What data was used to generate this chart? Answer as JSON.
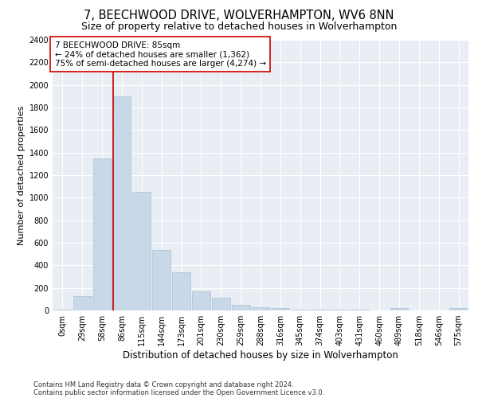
{
  "title1": "7, BEECHWOOD DRIVE, WOLVERHAMPTON, WV6 8NN",
  "title2": "Size of property relative to detached houses in Wolverhampton",
  "xlabel": "Distribution of detached houses by size in Wolverhampton",
  "ylabel": "Number of detached properties",
  "footnote1": "Contains HM Land Registry data © Crown copyright and database right 2024.",
  "footnote2": "Contains public sector information licensed under the Open Government Licence v3.0.",
  "annotation_line1": "7 BEECHWOOD DRIVE: 85sqm",
  "annotation_line2": "← 24% of detached houses are smaller (1,362)",
  "annotation_line3": "75% of semi-detached houses are larger (4,274) →",
  "bar_labels": [
    "0sqm",
    "29sqm",
    "58sqm",
    "86sqm",
    "115sqm",
    "144sqm",
    "173sqm",
    "201sqm",
    "230sqm",
    "259sqm",
    "288sqm",
    "316sqm",
    "345sqm",
    "374sqm",
    "403sqm",
    "431sqm",
    "460sqm",
    "489sqm",
    "518sqm",
    "546sqm",
    "575sqm"
  ],
  "bar_values": [
    10,
    130,
    1350,
    1900,
    1050,
    540,
    340,
    170,
    110,
    50,
    30,
    20,
    10,
    10,
    5,
    5,
    0,
    20,
    0,
    0,
    20
  ],
  "bar_color": "#c8d8e8",
  "bar_edge_color": "#a0b8cc",
  "vline_color": "#cc0000",
  "annotation_box_color": "#cc0000",
  "ylim": [
    0,
    2400
  ],
  "yticks": [
    0,
    200,
    400,
    600,
    800,
    1000,
    1200,
    1400,
    1600,
    1800,
    2000,
    2200,
    2400
  ],
  "background_color": "#e8eef4",
  "grid_color": "#ffffff",
  "title1_fontsize": 10.5,
  "title2_fontsize": 9,
  "annotation_fontsize": 7.5,
  "tick_fontsize": 7,
  "xlabel_fontsize": 8.5,
  "ylabel_fontsize": 8,
  "footnote_fontsize": 6
}
